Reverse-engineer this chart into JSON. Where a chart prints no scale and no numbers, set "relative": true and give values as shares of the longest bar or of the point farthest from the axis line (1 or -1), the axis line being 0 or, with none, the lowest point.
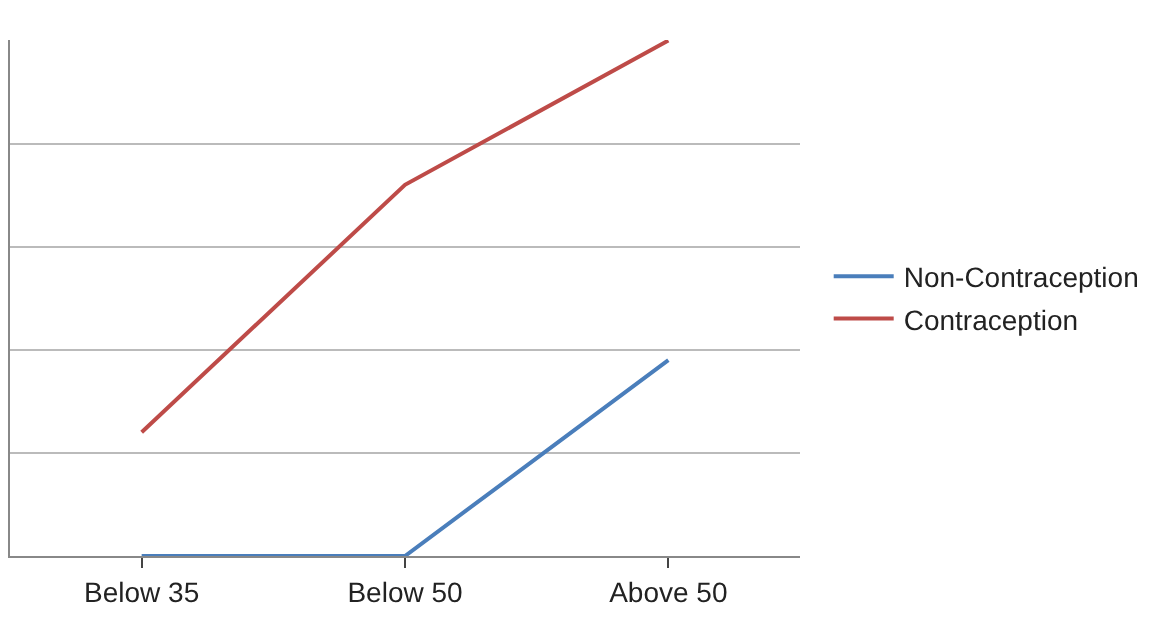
{
  "chart_data": {
    "type": "line",
    "relative": true,
    "categories": [
      "Below 35",
      "Below 50",
      "Above 50"
    ],
    "series": [
      {
        "name": "Non-Contraception",
        "color": "#4a7ebb",
        "values": [
          0,
          0,
          0.38
        ]
      },
      {
        "name": "Contraception",
        "color": "#be4b48",
        "values": [
          0.24,
          0.72,
          1.0
        ]
      }
    ],
    "grid": "y",
    "legend": "right",
    "marker": "none",
    "line_style": "solid"
  }
}
